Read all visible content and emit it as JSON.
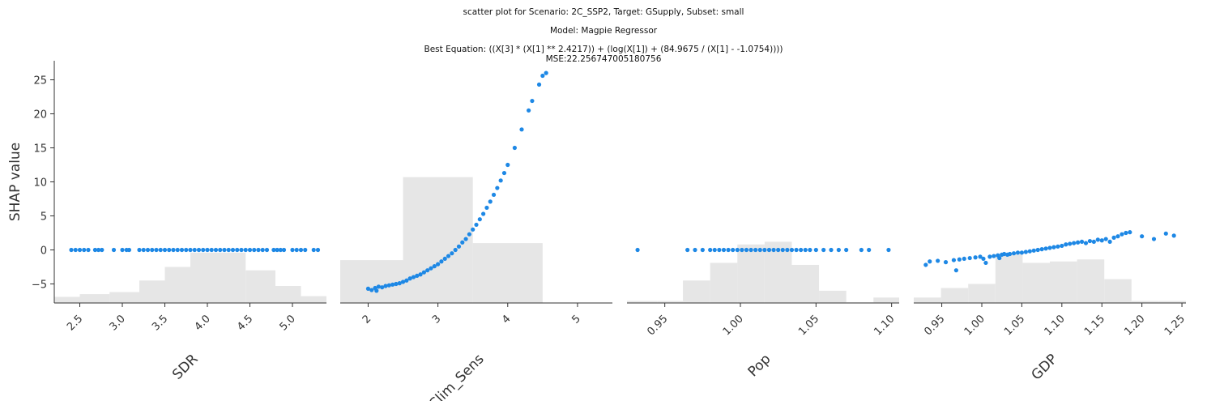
{
  "title_lines": [
    "scatter plot for Scenario: 2C_SSP2, Target: GSupply, Subset: small",
    "Model: Magpie Regressor",
    "Best Equation: ((X[3] * (X[1] ** 2.4217)) + (log(X[1]) + (84.9675 / (X[1] - -1.0754))))",
    "MSE:22.256747005180756"
  ],
  "colors": {
    "points": "#1e88e5",
    "hist": "#e6e6e6",
    "axis": "#333333"
  },
  "chart_data": [
    {
      "type": "scatter",
      "xlabel": "SDR",
      "ylabel": "SHAP value",
      "xlim": [
        2.2,
        5.4
      ],
      "ylim": [
        -7.8,
        27.8
      ],
      "xticks": [
        2.5,
        3.0,
        3.5,
        4.0,
        4.5,
        5.0
      ],
      "xtick_labels": [
        "2.5",
        "3.0",
        "3.5",
        "4.0",
        "4.5",
        "5.0"
      ],
      "yticks": [
        -5,
        0,
        5,
        10,
        15,
        20,
        25
      ],
      "ytick_labels": [
        "−5",
        "0",
        "5",
        "10",
        "15",
        "20",
        "25"
      ],
      "histogram": [
        {
          "x0": 2.2,
          "x1": 2.5,
          "top": -6.9
        },
        {
          "x0": 2.5,
          "x1": 2.85,
          "top": -6.5
        },
        {
          "x0": 2.85,
          "x1": 3.2,
          "top": -6.2
        },
        {
          "x0": 3.2,
          "x1": 3.5,
          "top": -4.5
        },
        {
          "x0": 3.5,
          "x1": 3.8,
          "top": -2.5
        },
        {
          "x0": 3.8,
          "x1": 4.45,
          "top": -0.4
        },
        {
          "x0": 4.45,
          "x1": 4.8,
          "top": -3.0
        },
        {
          "x0": 4.8,
          "x1": 5.1,
          "top": -5.3
        },
        {
          "x0": 5.1,
          "x1": 5.4,
          "top": -6.8
        }
      ],
      "points": [
        [
          2.4,
          0
        ],
        [
          2.45,
          0
        ],
        [
          2.5,
          0
        ],
        [
          2.55,
          0
        ],
        [
          2.6,
          0
        ],
        [
          2.68,
          0
        ],
        [
          2.72,
          0
        ],
        [
          2.76,
          0
        ],
        [
          2.9,
          0
        ],
        [
          3.0,
          0
        ],
        [
          3.05,
          0
        ],
        [
          3.08,
          0
        ],
        [
          3.2,
          0
        ],
        [
          3.25,
          0
        ],
        [
          3.3,
          0
        ],
        [
          3.35,
          0
        ],
        [
          3.4,
          0
        ],
        [
          3.45,
          0
        ],
        [
          3.5,
          0
        ],
        [
          3.55,
          0
        ],
        [
          3.6,
          0
        ],
        [
          3.65,
          0
        ],
        [
          3.7,
          0
        ],
        [
          3.75,
          0
        ],
        [
          3.8,
          0
        ],
        [
          3.85,
          0
        ],
        [
          3.9,
          0
        ],
        [
          3.95,
          0
        ],
        [
          4.0,
          0
        ],
        [
          4.05,
          0
        ],
        [
          4.1,
          0
        ],
        [
          4.15,
          0
        ],
        [
          4.2,
          0
        ],
        [
          4.25,
          0
        ],
        [
          4.3,
          0
        ],
        [
          4.35,
          0
        ],
        [
          4.4,
          0
        ],
        [
          4.45,
          0
        ],
        [
          4.5,
          0
        ],
        [
          4.55,
          0
        ],
        [
          4.6,
          0
        ],
        [
          4.65,
          0
        ],
        [
          4.7,
          0
        ],
        [
          4.78,
          0
        ],
        [
          4.82,
          0
        ],
        [
          4.86,
          0
        ],
        [
          4.9,
          0
        ],
        [
          5.0,
          0
        ],
        [
          5.05,
          0
        ],
        [
          5.1,
          0
        ],
        [
          5.15,
          0
        ],
        [
          5.25,
          0
        ],
        [
          5.3,
          0
        ]
      ]
    },
    {
      "type": "scatter",
      "xlabel": "Clim_Sens",
      "xlim": [
        1.6,
        5.5
      ],
      "ylim": [
        -7.8,
        27.8
      ],
      "xticks": [
        2,
        3,
        4,
        5
      ],
      "xtick_labels": [
        "2",
        "3",
        "4",
        "5"
      ],
      "histogram": [
        {
          "x0": 1.6,
          "x1": 2.5,
          "top": -1.5
        },
        {
          "x0": 2.5,
          "x1": 3.5,
          "top": 10.7
        },
        {
          "x0": 3.5,
          "x1": 4.5,
          "top": 1.0
        }
      ],
      "points": [
        [
          2.0,
          -5.7
        ],
        [
          2.05,
          -5.9
        ],
        [
          2.1,
          -5.6
        ],
        [
          2.12,
          -6.0
        ],
        [
          2.15,
          -5.4
        ],
        [
          2.2,
          -5.5
        ],
        [
          2.25,
          -5.3
        ],
        [
          2.3,
          -5.2
        ],
        [
          2.35,
          -5.1
        ],
        [
          2.4,
          -5.0
        ],
        [
          2.45,
          -4.9
        ],
        [
          2.5,
          -4.7
        ],
        [
          2.55,
          -4.5
        ],
        [
          2.6,
          -4.2
        ],
        [
          2.65,
          -4.0
        ],
        [
          2.7,
          -3.8
        ],
        [
          2.75,
          -3.6
        ],
        [
          2.8,
          -3.3
        ],
        [
          2.85,
          -3.0
        ],
        [
          2.9,
          -2.7
        ],
        [
          2.95,
          -2.4
        ],
        [
          3.0,
          -2.1
        ],
        [
          3.05,
          -1.7
        ],
        [
          3.1,
          -1.3
        ],
        [
          3.15,
          -0.9
        ],
        [
          3.2,
          -0.5
        ],
        [
          3.25,
          0.0
        ],
        [
          3.3,
          0.5
        ],
        [
          3.35,
          1.1
        ],
        [
          3.4,
          1.6
        ],
        [
          3.45,
          2.3
        ],
        [
          3.5,
          3.0
        ],
        [
          3.55,
          3.7
        ],
        [
          3.6,
          4.5
        ],
        [
          3.65,
          5.3
        ],
        [
          3.7,
          6.2
        ],
        [
          3.75,
          7.1
        ],
        [
          3.8,
          8.1
        ],
        [
          3.85,
          9.1
        ],
        [
          3.9,
          10.2
        ],
        [
          3.95,
          11.3
        ],
        [
          4.0,
          12.5
        ],
        [
          4.1,
          15.0
        ],
        [
          4.2,
          17.7
        ],
        [
          4.3,
          20.5
        ],
        [
          4.35,
          21.9
        ],
        [
          4.45,
          24.3
        ],
        [
          4.5,
          25.6
        ],
        [
          4.55,
          26.0
        ]
      ]
    },
    {
      "type": "scatter",
      "xlabel": "Pop",
      "xlim": [
        0.925,
        1.105
      ],
      "ylim": [
        -7.8,
        27.8
      ],
      "xticks": [
        0.95,
        1.0,
        1.05,
        1.1
      ],
      "xtick_labels": [
        "0.95",
        "1.00",
        "1.05",
        "1.10"
      ],
      "histogram": [
        {
          "x0": 0.925,
          "x1": 0.945,
          "top": -7.5
        },
        {
          "x0": 0.945,
          "x1": 0.962,
          "top": -7.5
        },
        {
          "x0": 0.962,
          "x1": 0.98,
          "top": -4.5
        },
        {
          "x0": 0.98,
          "x1": 0.998,
          "top": -1.9
        },
        {
          "x0": 0.998,
          "x1": 1.016,
          "top": 0.8
        },
        {
          "x0": 1.016,
          "x1": 1.034,
          "top": 1.2
        },
        {
          "x0": 1.034,
          "x1": 1.052,
          "top": -2.2
        },
        {
          "x0": 1.052,
          "x1": 1.07,
          "top": -6.0
        },
        {
          "x0": 1.07,
          "x1": 1.088,
          "top": -7.7
        },
        {
          "x0": 1.088,
          "x1": 1.105,
          "top": -7.0
        }
      ],
      "points": [
        [
          0.932,
          0
        ],
        [
          0.965,
          0
        ],
        [
          0.97,
          0
        ],
        [
          0.975,
          0
        ],
        [
          0.98,
          0
        ],
        [
          0.983,
          0
        ],
        [
          0.986,
          0
        ],
        [
          0.989,
          0
        ],
        [
          0.992,
          0
        ],
        [
          0.995,
          0
        ],
        [
          0.998,
          0
        ],
        [
          1.001,
          0
        ],
        [
          1.004,
          0
        ],
        [
          1.007,
          0
        ],
        [
          1.01,
          0
        ],
        [
          1.013,
          0
        ],
        [
          1.016,
          0
        ],
        [
          1.019,
          0
        ],
        [
          1.022,
          0
        ],
        [
          1.025,
          0
        ],
        [
          1.028,
          0
        ],
        [
          1.031,
          0
        ],
        [
          1.034,
          0
        ],
        [
          1.037,
          0
        ],
        [
          1.04,
          0
        ],
        [
          1.043,
          0
        ],
        [
          1.046,
          0
        ],
        [
          1.05,
          0
        ],
        [
          1.055,
          0
        ],
        [
          1.06,
          0
        ],
        [
          1.065,
          0
        ],
        [
          1.07,
          0
        ],
        [
          1.08,
          0
        ],
        [
          1.085,
          0
        ],
        [
          1.098,
          0
        ]
      ]
    },
    {
      "type": "scatter",
      "xlabel": "GDP",
      "xlim": [
        0.915,
        1.255
      ],
      "ylim": [
        -7.8,
        27.8
      ],
      "xticks": [
        0.95,
        1.0,
        1.05,
        1.1,
        1.15,
        1.2,
        1.25
      ],
      "xtick_labels": [
        "0.95",
        "1.00",
        "1.05",
        "1.10",
        "1.15",
        "1.20",
        "1.25"
      ],
      "histogram": [
        {
          "x0": 0.915,
          "x1": 0.949,
          "top": -7.0
        },
        {
          "x0": 0.949,
          "x1": 0.983,
          "top": -5.6
        },
        {
          "x0": 0.983,
          "x1": 1.017,
          "top": -5.0
        },
        {
          "x0": 1.017,
          "x1": 1.051,
          "top": -0.6
        },
        {
          "x0": 1.051,
          "x1": 1.085,
          "top": -1.9
        },
        {
          "x0": 1.085,
          "x1": 1.119,
          "top": -1.7
        },
        {
          "x0": 1.119,
          "x1": 1.153,
          "top": -1.4
        },
        {
          "x0": 1.153,
          "x1": 1.187,
          "top": -4.3
        },
        {
          "x0": 1.187,
          "x1": 1.221,
          "top": -7.5
        },
        {
          "x0": 1.221,
          "x1": 1.255,
          "top": -7.5
        }
      ],
      "points": [
        [
          0.93,
          -2.2
        ],
        [
          0.935,
          -1.7
        ],
        [
          0.945,
          -1.6
        ],
        [
          0.955,
          -1.8
        ],
        [
          0.965,
          -1.5
        ],
        [
          0.968,
          -3.0
        ],
        [
          0.972,
          -1.4
        ],
        [
          0.978,
          -1.3
        ],
        [
          0.985,
          -1.2
        ],
        [
          0.992,
          -1.1
        ],
        [
          0.998,
          -1.0
        ],
        [
          1.002,
          -1.3
        ],
        [
          1.005,
          -1.9
        ],
        [
          1.01,
          -1.0
        ],
        [
          1.015,
          -0.9
        ],
        [
          1.02,
          -0.8
        ],
        [
          1.022,
          -1.2
        ],
        [
          1.025,
          -0.7
        ],
        [
          1.028,
          -0.6
        ],
        [
          1.032,
          -0.7
        ],
        [
          1.035,
          -0.6
        ],
        [
          1.04,
          -0.5
        ],
        [
          1.045,
          -0.4
        ],
        [
          1.05,
          -0.4
        ],
        [
          1.055,
          -0.3
        ],
        [
          1.06,
          -0.2
        ],
        [
          1.065,
          -0.1
        ],
        [
          1.07,
          0.0
        ],
        [
          1.075,
          0.1
        ],
        [
          1.08,
          0.2
        ],
        [
          1.085,
          0.3
        ],
        [
          1.09,
          0.4
        ],
        [
          1.095,
          0.5
        ],
        [
          1.1,
          0.6
        ],
        [
          1.105,
          0.8
        ],
        [
          1.11,
          0.9
        ],
        [
          1.115,
          1.0
        ],
        [
          1.12,
          1.1
        ],
        [
          1.125,
          1.2
        ],
        [
          1.13,
          1.0
        ],
        [
          1.135,
          1.3
        ],
        [
          1.14,
          1.2
        ],
        [
          1.145,
          1.5
        ],
        [
          1.15,
          1.4
        ],
        [
          1.155,
          1.6
        ],
        [
          1.16,
          1.2
        ],
        [
          1.165,
          1.8
        ],
        [
          1.17,
          2.0
        ],
        [
          1.175,
          2.3
        ],
        [
          1.18,
          2.5
        ],
        [
          1.185,
          2.6
        ],
        [
          1.2,
          2.0
        ],
        [
          1.215,
          1.6
        ],
        [
          1.23,
          2.4
        ],
        [
          1.24,
          2.1
        ]
      ]
    }
  ]
}
